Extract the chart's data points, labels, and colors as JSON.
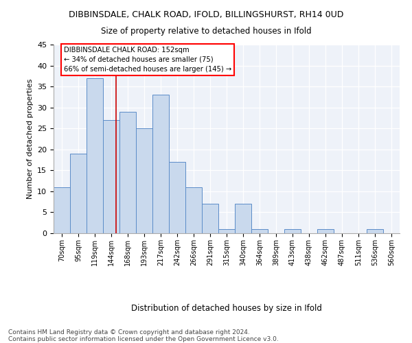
{
  "title1": "DIBBINSDALE, CHALK ROAD, IFOLD, BILLINGSHURST, RH14 0UD",
  "title2": "Size of property relative to detached houses in Ifold",
  "xlabel": "Distribution of detached houses by size in Ifold",
  "ylabel": "Number of detached properties",
  "bar_color": "#c9d9ed",
  "bar_edge_color": "#5b8cc8",
  "background_color": "#eef2f9",
  "vline_color": "#cc0000",
  "annotation_text": "DIBBINSDALE CHALK ROAD: 152sqm\n← 34% of detached houses are smaller (75)\n66% of semi-detached houses are larger (145) →",
  "footer": "Contains HM Land Registry data © Crown copyright and database right 2024.\nContains public sector information licensed under the Open Government Licence v3.0.",
  "categories": [
    "70sqm",
    "95sqm",
    "119sqm",
    "144sqm",
    "168sqm",
    "193sqm",
    "217sqm",
    "242sqm",
    "266sqm",
    "291sqm",
    "315sqm",
    "340sqm",
    "364sqm",
    "389sqm",
    "413sqm",
    "438sqm",
    "462sqm",
    "487sqm",
    "511sqm",
    "536sqm",
    "560sqm"
  ],
  "x_positions": [
    0,
    1,
    2,
    3,
    4,
    5,
    6,
    7,
    8,
    9,
    10,
    11,
    12,
    13,
    14,
    15,
    16,
    17,
    18,
    19,
    20
  ],
  "values": [
    11,
    19,
    37,
    27,
    29,
    25,
    33,
    17,
    11,
    7,
    1,
    7,
    1,
    0,
    1,
    0,
    1,
    0,
    0,
    1,
    0
  ],
  "vline_pos": 3.28,
  "ylim": [
    0,
    45
  ],
  "yticks": [
    0,
    5,
    10,
    15,
    20,
    25,
    30,
    35,
    40,
    45
  ]
}
